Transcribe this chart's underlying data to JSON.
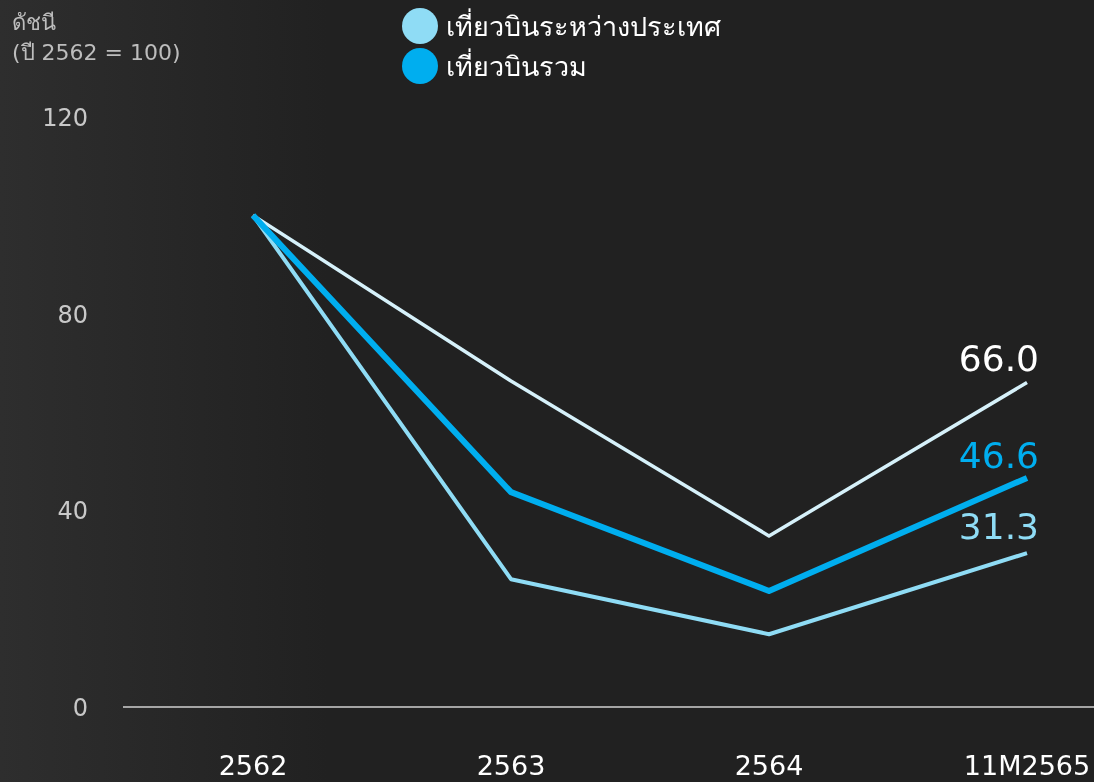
{
  "chart_data": {
    "type": "line",
    "ylabel": "ดัชนี (ปี 2562 = 100)",
    "categories": [
      "2562",
      "2563",
      "2564",
      "11M2565"
    ],
    "ylim": [
      0,
      120
    ],
    "yticks": [
      0,
      40,
      80,
      120
    ],
    "grid": false,
    "legend": "top",
    "series": [
      {
        "color": "#d6f1fa",
        "values": [
          100,
          66.3,
          34.8,
          66.0
        ],
        "value_labels": [
          null,
          null,
          null,
          "66.0"
        ]
      },
      {
        "name": "เที่ยวบินระหว่างประเทศ",
        "color": "#8fdcf5",
        "values": [
          100,
          26.0,
          14.8,
          31.3
        ],
        "value_labels": [
          null,
          null,
          null,
          "31.3"
        ]
      },
      {
        "name": "เที่ยวบินรวม",
        "color": "#00aeef",
        "values": [
          100,
          43.7,
          23.6,
          46.6
        ],
        "value_labels": [
          null,
          null,
          null,
          "46.6"
        ]
      }
    ]
  }
}
